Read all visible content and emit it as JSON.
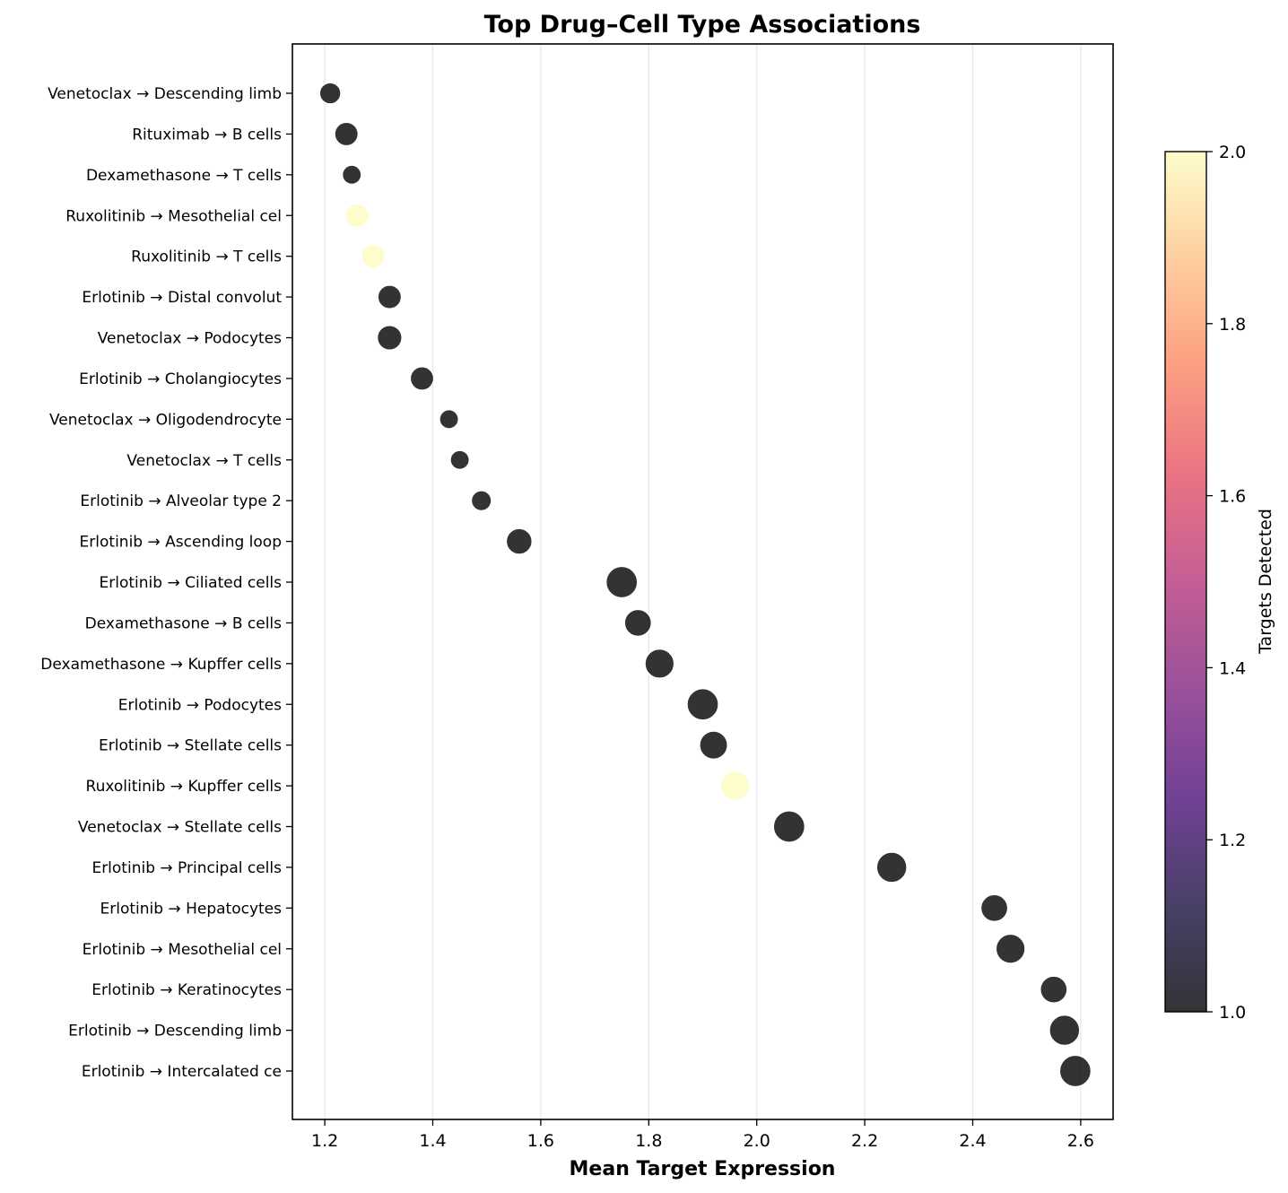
{
  "chart_data": {
    "type": "scatter",
    "title": "Top Drug–Cell Type Associations",
    "xlabel": "Mean Target Expression",
    "ylabel": "",
    "xlim": [
      1.14,
      2.66
    ],
    "xticks": [
      "1.2",
      "1.4",
      "1.6",
      "1.8",
      "2.0",
      "2.2",
      "2.4",
      "2.6"
    ],
    "grid": "vertical",
    "colormap": "magma",
    "colorbar": {
      "label": "Targets Detected",
      "range": [
        1.0,
        2.0
      ],
      "ticks": [
        "1.0",
        "1.2",
        "1.4",
        "1.6",
        "1.8",
        "2.0"
      ]
    },
    "points": [
      {
        "label": "Venetoclax → Descending limb",
        "x": 1.21,
        "targets": 1,
        "size": 1.9
      },
      {
        "label": "Rituximab → B cells",
        "x": 1.24,
        "targets": 1,
        "size": 2.1
      },
      {
        "label": "Dexamethasone → T cells",
        "x": 1.25,
        "targets": 1,
        "size": 1.7
      },
      {
        "label": "Ruxolitinib → Mesothelial cel",
        "x": 1.26,
        "targets": 2,
        "size": 2.1
      },
      {
        "label": "Ruxolitinib → T cells",
        "x": 1.29,
        "targets": 2,
        "size": 2.1
      },
      {
        "label": "Erlotinib → Distal convolut",
        "x": 1.32,
        "targets": 1,
        "size": 2.1
      },
      {
        "label": "Venetoclax → Podocytes",
        "x": 1.32,
        "targets": 1,
        "size": 2.2
      },
      {
        "label": "Erlotinib → Cholangiocytes",
        "x": 1.38,
        "targets": 1,
        "size": 2.1
      },
      {
        "label": "Venetoclax → Oligodendrocyte",
        "x": 1.43,
        "targets": 1,
        "size": 1.7
      },
      {
        "label": "Venetoclax → T cells",
        "x": 1.45,
        "targets": 1,
        "size": 1.7
      },
      {
        "label": "Erlotinib → Alveolar type 2",
        "x": 1.49,
        "targets": 1,
        "size": 1.8
      },
      {
        "label": "Erlotinib → Ascending loop ",
        "x": 1.56,
        "targets": 1,
        "size": 2.3
      },
      {
        "label": "Erlotinib → Ciliated cells",
        "x": 1.75,
        "targets": 1,
        "size": 2.8
      },
      {
        "label": "Dexamethasone → B cells",
        "x": 1.78,
        "targets": 1,
        "size": 2.4
      },
      {
        "label": "Dexamethasone → Kupffer cells",
        "x": 1.82,
        "targets": 1,
        "size": 2.6
      },
      {
        "label": "Erlotinib → Podocytes",
        "x": 1.9,
        "targets": 1,
        "size": 2.8
      },
      {
        "label": "Erlotinib → Stellate cells",
        "x": 1.92,
        "targets": 1,
        "size": 2.5
      },
      {
        "label": "Ruxolitinib → Kupffer cells",
        "x": 1.96,
        "targets": 2,
        "size": 2.6
      },
      {
        "label": "Venetoclax → Stellate cells",
        "x": 2.06,
        "targets": 1,
        "size": 2.8
      },
      {
        "label": "Erlotinib → Principal cells",
        "x": 2.25,
        "targets": 1,
        "size": 2.7
      },
      {
        "label": "Erlotinib → Hepatocytes",
        "x": 2.44,
        "targets": 1,
        "size": 2.4
      },
      {
        "label": "Erlotinib → Mesothelial cel",
        "x": 2.47,
        "targets": 1,
        "size": 2.6
      },
      {
        "label": "Erlotinib → Keratinocytes",
        "x": 2.55,
        "targets": 1,
        "size": 2.4
      },
      {
        "label": "Erlotinib → Descending limb",
        "x": 2.57,
        "targets": 1,
        "size": 2.7
      },
      {
        "label": "Erlotinib → Intercalated ce",
        "x": 2.59,
        "targets": 1,
        "size": 2.8
      }
    ]
  }
}
